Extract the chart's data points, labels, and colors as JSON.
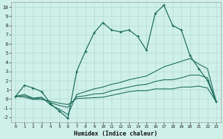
{
  "xlabel": "Humidex (Indice chaleur)",
  "background_color": "#cff0e8",
  "grid_color": "#b0d9cf",
  "line_color": "#1a6b5a",
  "xlim": [
    -0.5,
    23.5
  ],
  "ylim": [
    -2.5,
    10.5
  ],
  "x_ticks": [
    0,
    1,
    2,
    3,
    4,
    5,
    6,
    7,
    8,
    9,
    10,
    11,
    12,
    13,
    14,
    15,
    16,
    17,
    18,
    19,
    20,
    21,
    22,
    23
  ],
  "y_ticks": [
    -2,
    -1,
    0,
    1,
    2,
    3,
    4,
    5,
    6,
    7,
    8,
    9,
    10
  ],
  "main_y": [
    0.3,
    1.5,
    1.2,
    0.8,
    -0.5,
    -1.3,
    -2.1,
    3.0,
    5.2,
    7.2,
    8.3,
    7.5,
    7.3,
    7.5,
    6.8,
    5.3,
    9.3,
    10.2,
    8.0,
    7.5,
    4.7,
    3.3,
    2.0,
    -0.3
  ],
  "line2_y": [
    0.3,
    0.5,
    0.1,
    0.2,
    -0.65,
    -1.1,
    -1.7,
    0.5,
    0.8,
    1.1,
    1.3,
    1.6,
    1.8,
    2.1,
    2.3,
    2.5,
    3.0,
    3.5,
    3.8,
    4.1,
    4.4,
    3.8,
    3.3,
    -0.3
  ],
  "line3_y": [
    0.3,
    0.35,
    0.05,
    0.1,
    -0.4,
    -0.7,
    -0.9,
    0.25,
    0.35,
    0.55,
    0.6,
    0.9,
    1.1,
    1.3,
    1.5,
    1.6,
    1.9,
    2.1,
    2.1,
    2.3,
    2.6,
    2.6,
    2.3,
    -0.3
  ],
  "line4_y": [
    0.3,
    0.2,
    -0.05,
    -0.05,
    -0.25,
    -0.45,
    -0.6,
    0.05,
    0.1,
    0.15,
    0.2,
    0.4,
    0.6,
    0.8,
    0.9,
    0.9,
    1.1,
    1.1,
    1.1,
    1.3,
    1.3,
    1.4,
    1.2,
    -0.3
  ]
}
